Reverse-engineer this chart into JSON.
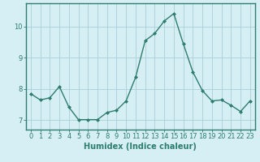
{
  "x": [
    0,
    1,
    2,
    3,
    4,
    5,
    6,
    7,
    8,
    9,
    10,
    11,
    12,
    13,
    14,
    15,
    16,
    17,
    18,
    19,
    20,
    21,
    22,
    23
  ],
  "y": [
    7.85,
    7.65,
    7.72,
    8.08,
    7.42,
    7.02,
    7.02,
    7.02,
    7.25,
    7.32,
    7.62,
    8.38,
    9.55,
    9.78,
    10.18,
    10.42,
    9.45,
    8.55,
    7.95,
    7.62,
    7.65,
    7.48,
    7.28,
    7.62
  ],
  "line_color": "#2e7d6e",
  "marker": "D",
  "marker_size": 2,
  "line_width": 1.0,
  "bg_color": "#d6eff5",
  "grid_color": "#aacfd8",
  "xlabel": "Humidex (Indice chaleur)",
  "xlabel_fontsize": 7,
  "tick_fontsize": 6,
  "ylim": [
    6.7,
    10.75
  ],
  "xlim": [
    -0.5,
    23.5
  ],
  "yticks": [
    7,
    8,
    9,
    10
  ],
  "xticks": [
    0,
    1,
    2,
    3,
    4,
    5,
    6,
    7,
    8,
    9,
    10,
    11,
    12,
    13,
    14,
    15,
    16,
    17,
    18,
    19,
    20,
    21,
    22,
    23
  ]
}
